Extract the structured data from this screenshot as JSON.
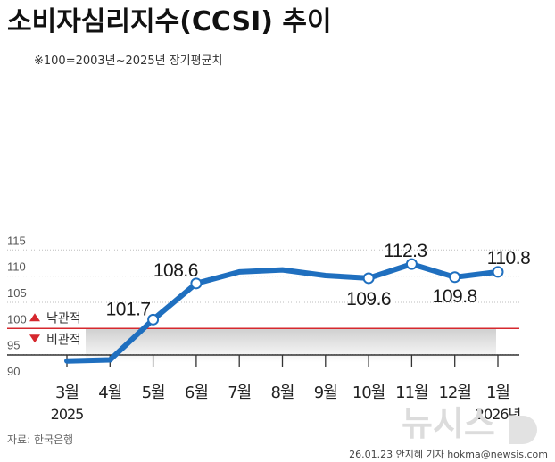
{
  "title": "소비자심리지수(CCSI) 추이",
  "note": "※100=2003년~2025년 장기평균치",
  "source": "자료: 한국은행",
  "credit": "26.01.23 안지혜 기자 hokma@newsis.com",
  "watermark": "뉴시스",
  "colors": {
    "line": "#1f6fbf",
    "reference": "#d6282e",
    "band_top": "#cfcfcf",
    "band_bottom": "#ffffff",
    "grid": "#bdbdbd",
    "axis": "#333333"
  },
  "chart_data": {
    "type": "line",
    "title": "소비자심리지수(CCSI) 추이",
    "categories": [
      "3월",
      "4월",
      "5월",
      "6월",
      "7월",
      "8월",
      "9월",
      "10월",
      "11월",
      "12월",
      "1월"
    ],
    "year_labels": [
      {
        "index": 0,
        "text": "2025"
      },
      {
        "index": 10,
        "text": "2026년"
      }
    ],
    "values": [
      93.8,
      94.0,
      101.7,
      108.6,
      110.8,
      111.2,
      110.1,
      109.6,
      112.3,
      109.8,
      110.8
    ],
    "data_labels": [
      {
        "index": 2,
        "text": "101.7"
      },
      {
        "index": 3,
        "text": "108.6"
      },
      {
        "index": 7,
        "text": "109.6"
      },
      {
        "index": 8,
        "text": "112.3"
      },
      {
        "index": 9,
        "text": "109.8"
      },
      {
        "index": 10,
        "text": "110.8"
      }
    ],
    "marker_indices": [
      2,
      3,
      7,
      8,
      9,
      10
    ],
    "yticks": [
      90,
      95,
      100,
      105,
      110,
      115
    ],
    "ylim": [
      90,
      115
    ],
    "reference_line": 100,
    "reference_labels": {
      "above": "낙관적",
      "below": "비관적"
    },
    "grid": true
  }
}
